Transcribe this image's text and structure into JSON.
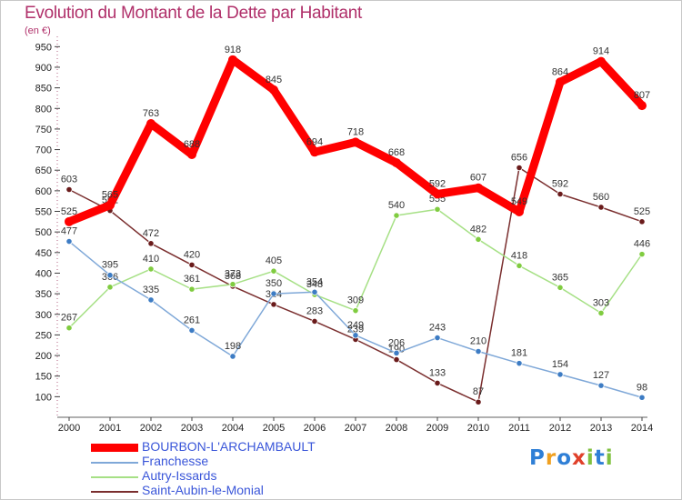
{
  "chart_data": {
    "type": "line",
    "title": "Evolution du Montant de la Dette par Habitant",
    "subtitle": "(en €)",
    "xlabel": "",
    "ylabel": "",
    "categories": [
      "2000",
      "2001",
      "2002",
      "2003",
      "2004",
      "2005",
      "2006",
      "2007",
      "2008",
      "2009",
      "2010",
      "2011",
      "2012",
      "2013",
      "2014"
    ],
    "ylim": [
      50,
      975
    ],
    "yticks": [
      100,
      150,
      200,
      250,
      300,
      350,
      400,
      450,
      500,
      550,
      600,
      650,
      700,
      750,
      800,
      850,
      900,
      950
    ],
    "grid": false,
    "legend_position": "bottom-left",
    "series": [
      {
        "name": "BOURBON-L'ARCHAMBAULT",
        "color": "#ff0000",
        "marker": "#ff0000",
        "values": [
          525,
          565,
          763,
          688,
          918,
          845,
          694,
          718,
          668,
          592,
          607,
          549,
          864,
          914,
          807
        ],
        "labels": [
          "525",
          "565",
          "763",
          "688",
          "918",
          "845",
          "694",
          "718",
          "668",
          "592",
          "607",
          "549",
          "864",
          "914",
          "807"
        ]
      },
      {
        "name": "Franchesse",
        "color": "#7fa8d8",
        "marker": "#3d7cc4",
        "values": [
          477,
          395,
          335,
          261,
          198,
          350,
          354,
          249,
          206,
          243,
          210,
          181,
          154,
          127,
          98
        ],
        "labels": [
          "477",
          "395",
          "335",
          "261",
          "198",
          "350",
          "354",
          "249",
          "206",
          "243",
          "210",
          "181",
          "154",
          "127",
          "98"
        ]
      },
      {
        "name": "Autry-Issards",
        "color": "#a6e085",
        "marker": "#80cc40",
        "values": [
          267,
          366,
          410,
          361,
          373,
          405,
          348,
          309,
          540,
          555,
          482,
          418,
          365,
          303,
          446
        ],
        "labels": [
          "267",
          "366",
          "410",
          "361",
          "373",
          "405",
          "348",
          "309",
          "540",
          "555",
          "482",
          "418",
          "365",
          "303",
          "446"
        ]
      },
      {
        "name": "Saint-Aubin-le-Monial",
        "color": "#7a2e2e",
        "marker": "#6a1b1b",
        "values": [
          603,
          552,
          472,
          420,
          368,
          324,
          283,
          239,
          190,
          133,
          87,
          656,
          592,
          560,
          525
        ],
        "labels": [
          "603",
          "552",
          "472",
          "420",
          "368",
          "324",
          "283",
          "239",
          "190",
          "133",
          "87",
          "656",
          "592",
          "560",
          "525"
        ]
      }
    ]
  },
  "logo": {
    "text": "Proxiti",
    "letters": [
      "P",
      "r",
      "o",
      "x",
      "i",
      "t",
      "i"
    ],
    "colors": [
      "#2f7fd6",
      "#f0a020",
      "#2f7fd6",
      "#e0402a",
      "#80c040",
      "#2f7fd6",
      "#80c040"
    ]
  }
}
